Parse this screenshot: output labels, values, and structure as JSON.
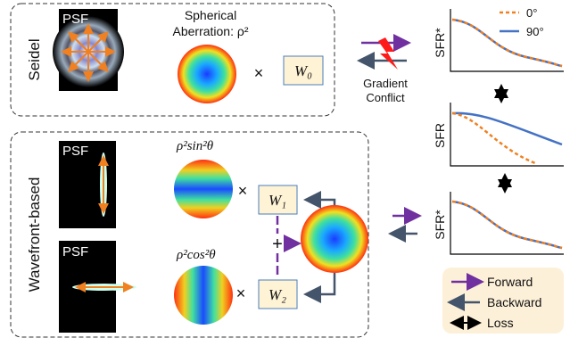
{
  "seidel": {
    "label": "Seidel",
    "psf": "PSF",
    "aberration_line1": "Spherical",
    "aberration_line2": "Aberration: ρ²",
    "times": "×",
    "weight": "W₀"
  },
  "conflict": {
    "line1": "Gradient",
    "line2": "Conflict"
  },
  "plots": {
    "top": {
      "ylabel": "SFR*",
      "legend": [
        "0°",
        "90°"
      ]
    },
    "middle": {
      "ylabel": "SFR"
    },
    "bottom": {
      "ylabel": "SFR*"
    }
  },
  "wavefront": {
    "label": "Wavefront-based",
    "psf_top": "PSF",
    "psf_bottom": "PSF",
    "term1": "ρ²sin²θ",
    "term2": "ρ²cos²θ",
    "times1": "×",
    "times2": "×",
    "weight1": "W₁",
    "weight2": "W₂",
    "plus": "+"
  },
  "key": {
    "forward": "Forward",
    "backward": "Backward",
    "loss": "Loss"
  }
}
